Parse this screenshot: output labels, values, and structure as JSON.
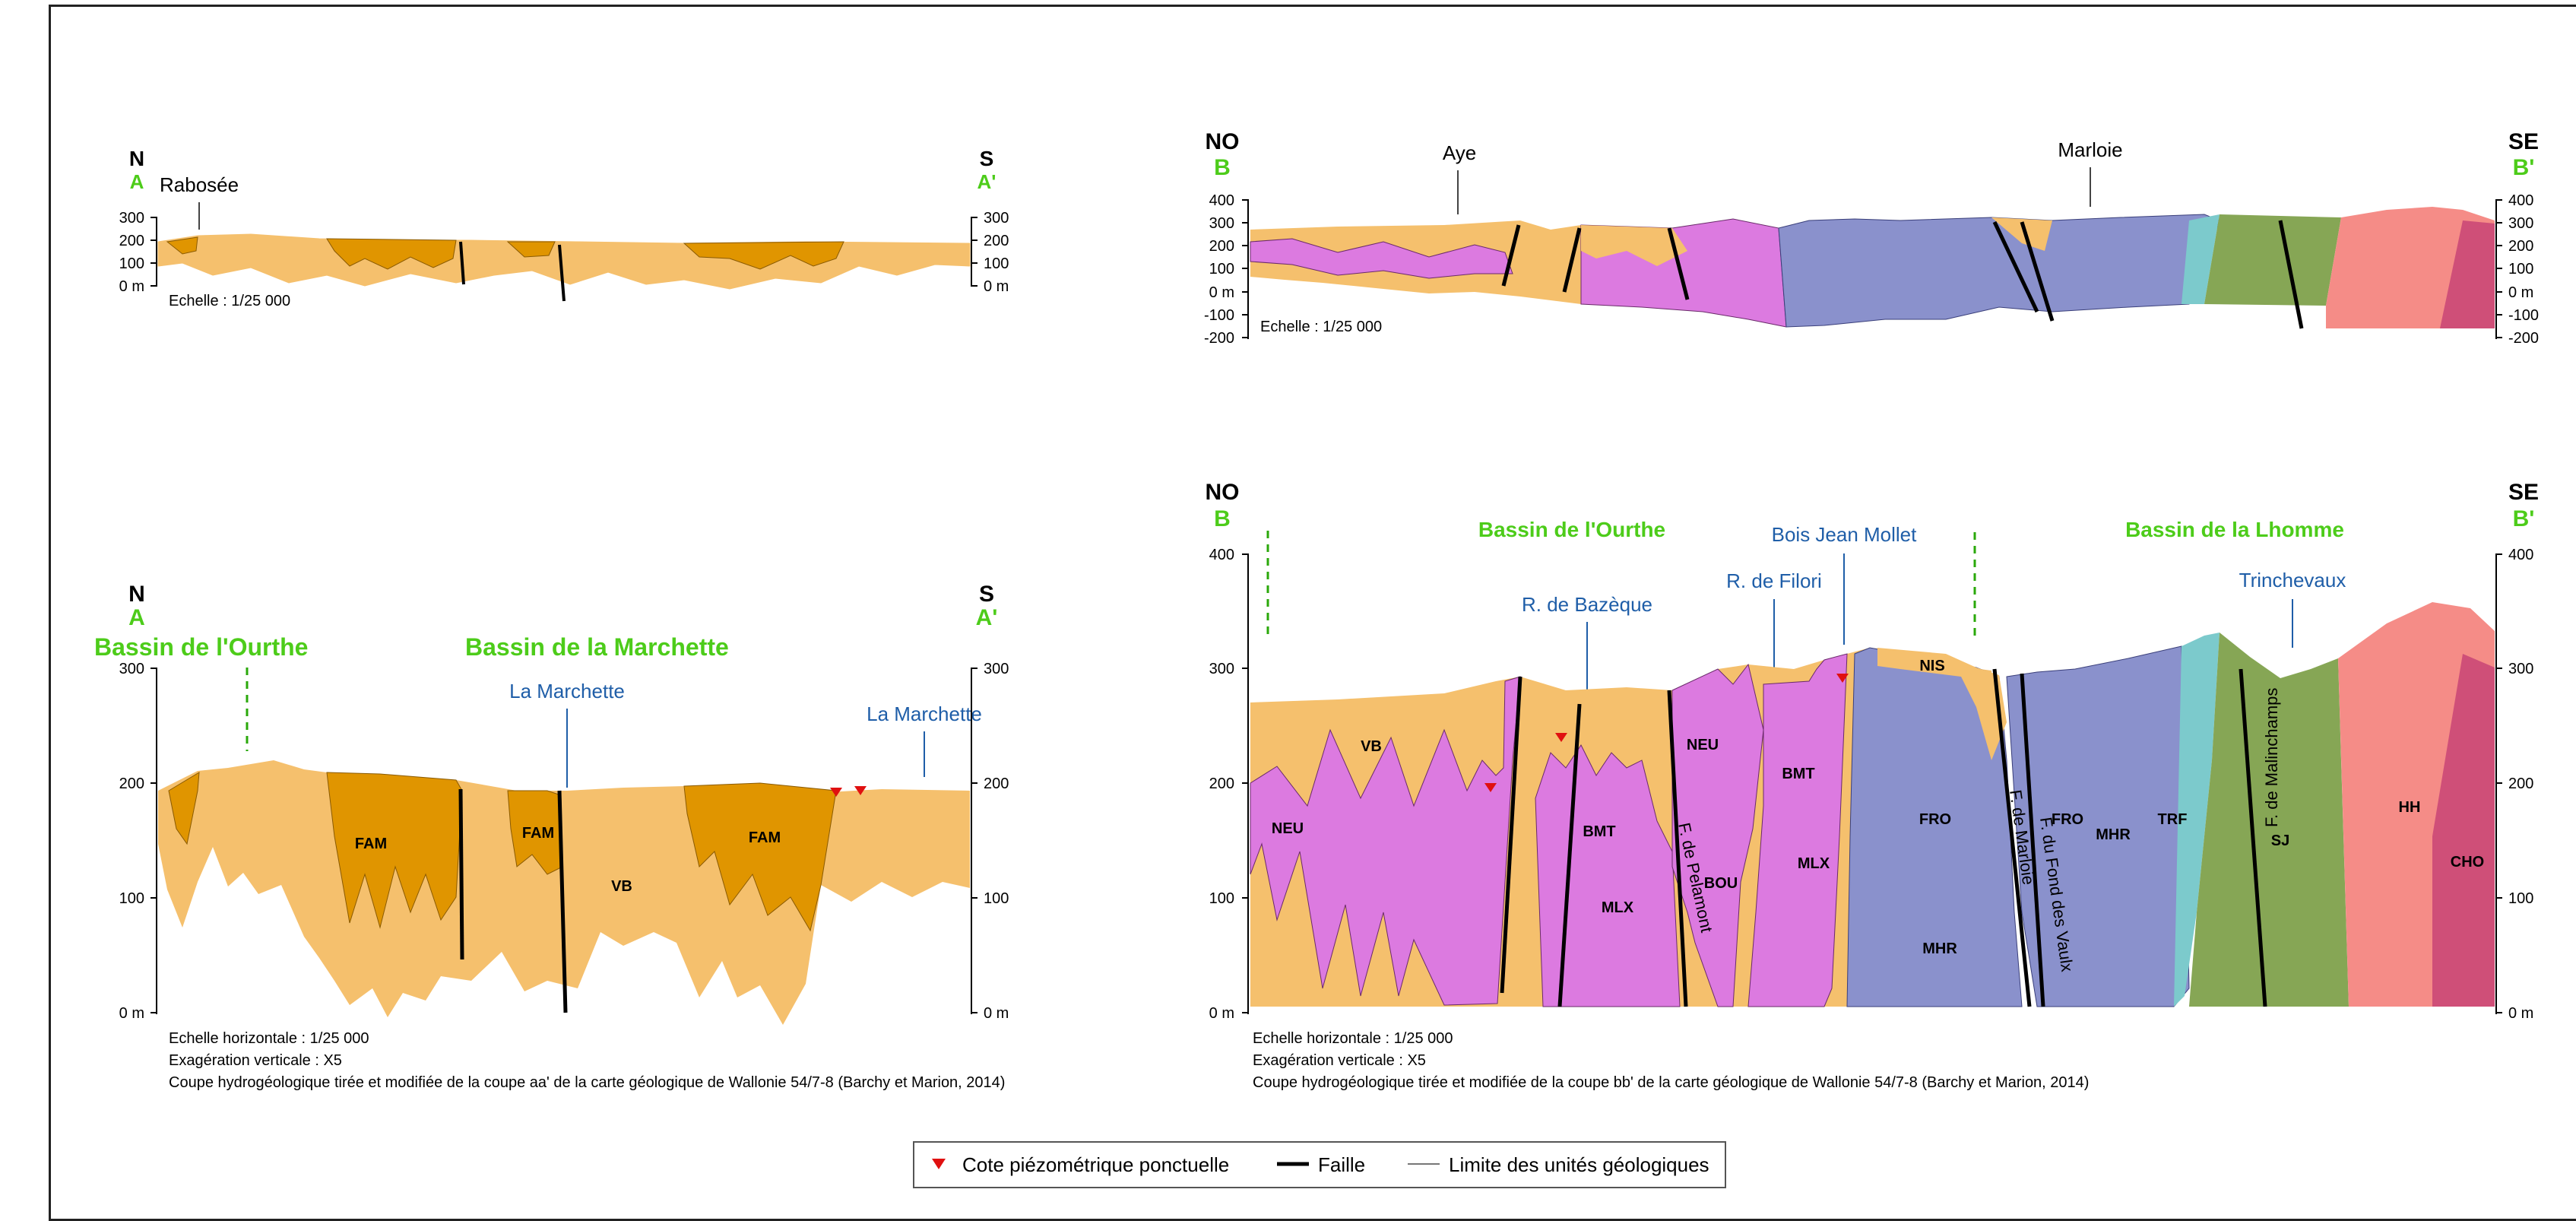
{
  "common": {
    "scale_small": "Echelle : 1/25 000",
    "scale_h": "Echelle horizontale : 1/25 000",
    "exag": "Exagération verticale : X5",
    "m0": "0 m"
  },
  "profile_aa_small": {
    "left_dir": "N",
    "left_letter": "A",
    "right_dir": "S",
    "right_letter": "A'",
    "place": "Rabosée",
    "ticks": [
      "300",
      "200",
      "100",
      "0 m"
    ]
  },
  "profile_bb_small": {
    "left_dir": "NO",
    "left_letter": "B",
    "right_dir": "SE",
    "right_letter": "B'",
    "places": [
      "Aye",
      "Marloie"
    ],
    "ticks": [
      "400",
      "300",
      "200",
      "100",
      "0 m",
      "-100",
      "-200"
    ]
  },
  "profile_aa_large": {
    "left_dir": "N",
    "left_letter": "A",
    "right_dir": "S",
    "right_letter": "A'",
    "basins": [
      "Bassin de l'Ourthe",
      "Bassin de la Marchette"
    ],
    "rivers": [
      "La Marchette",
      "La Marchette"
    ],
    "ticks": [
      "300",
      "200",
      "100",
      "0 m"
    ],
    "units": [
      "FAM",
      "FAM",
      "FAM",
      "VB"
    ],
    "caption": "Coupe hydrogéologique tirée et modifiée de la coupe aa' de la carte géologique de Wallonie 54/7-8 (Barchy et Marion, 2014)"
  },
  "profile_bb_large": {
    "left_dir": "NO",
    "left_letter": "B",
    "right_dir": "SE",
    "right_letter": "B'",
    "basins": [
      "Bassin de l'Ourthe",
      "Bassin de la Lhomme"
    ],
    "rivers": [
      "R. de Bazèque",
      "R. de Filori",
      "Bois Jean Mollet",
      "Trinchevaux"
    ],
    "ticks": [
      "400",
      "300",
      "200",
      "100",
      "0 m"
    ],
    "units": [
      "VB",
      "NEU",
      "BMT",
      "MLX",
      "NEU",
      "BOU",
      "BMT",
      "MLX",
      "NIS",
      "FRO",
      "MHR",
      "FRO",
      "MHR",
      "TRF",
      "SJ",
      "HH",
      "CHO"
    ],
    "faults": [
      "F. de Pelamont",
      "F. de Marloie",
      "F. du Fond des Vaulx",
      "F. de Malinchamps"
    ],
    "caption": "Coupe hydrogéologique tirée et modifiée de la coupe bb' de la carte géologique de Wallonie 54/7-8 (Barchy et Marion, 2014)"
  },
  "legend": {
    "items": [
      "Cote piézométrique ponctuelle",
      "Faille",
      "Limite des unités géologiques"
    ]
  },
  "colors": {
    "sand": "#f5c06d",
    "fam": "#e09500",
    "neu": "#dc7ae0",
    "fro": "#8a91cc",
    "trf": "#7ccacc",
    "sj": "#86a655",
    "hh": "#f58c87",
    "cho": "#cf4f78",
    "basin_green": "#4dcc1a",
    "river_blue": "#1f5ea8",
    "piezo_red": "#e01010"
  }
}
